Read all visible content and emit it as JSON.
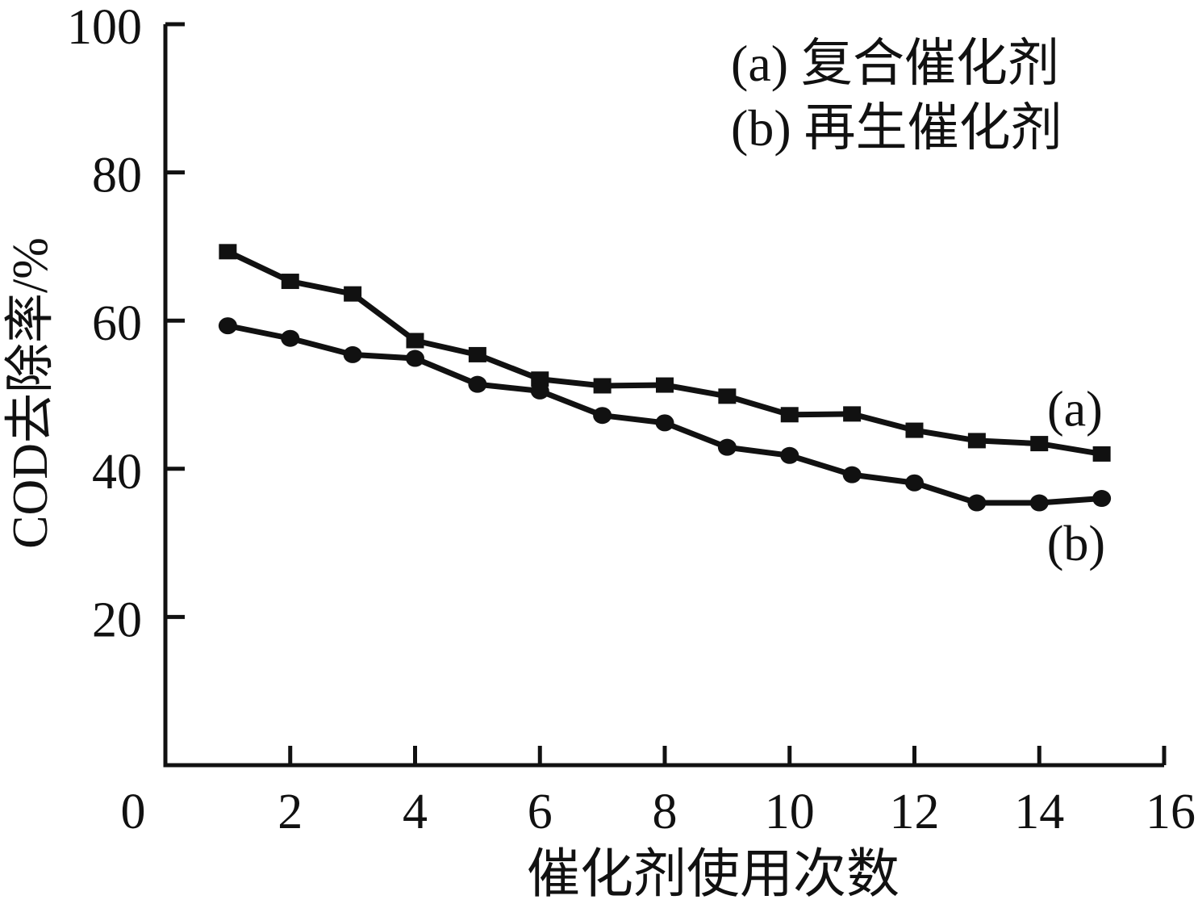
{
  "figure": {
    "background": "#ffffff",
    "ink_color": "#111111"
  },
  "chart_data": {
    "type": "line",
    "title": "",
    "xlabel": "催化剂使用次数",
    "ylabel": "COD去除率/%",
    "xlim": [
      0,
      16
    ],
    "ylim": [
      0,
      100
    ],
    "xticks": [
      0,
      2,
      4,
      6,
      8,
      10,
      12,
      14,
      16
    ],
    "yticks": [
      20,
      40,
      60,
      80,
      100
    ],
    "grid": false,
    "x": [
      1,
      2,
      3,
      4,
      5,
      6,
      7,
      8,
      9,
      10,
      11,
      12,
      13,
      14,
      15
    ],
    "series": [
      {
        "id": "a",
        "name": "复合催化剂",
        "legend_label": "(a) 复合催化剂",
        "marker": "square",
        "color": "#111111",
        "values": [
          69.3,
          65.3,
          63.6,
          57.3,
          55.4,
          52.1,
          51.2,
          51.3,
          49.8,
          47.3,
          47.4,
          45.2,
          43.8,
          43.4,
          42.0
        ]
      },
      {
        "id": "b",
        "name": "再生催化剂",
        "legend_label": "(b) 再生催化剂",
        "marker": "circle",
        "color": "#111111",
        "values": [
          59.3,
          57.6,
          55.4,
          54.9,
          51.4,
          50.5,
          47.2,
          46.2,
          42.9,
          41.8,
          39.2,
          38.1,
          35.4,
          35.4,
          36.0
        ]
      }
    ],
    "legend": {
      "position": "top-right",
      "lines": [
        "(a) 复合催化剂",
        "(b) 再生催化剂"
      ]
    },
    "annotations": [
      {
        "text": "(a)",
        "x": 14.57,
        "y": 48.3
      },
      {
        "text": "(b)",
        "x": 14.59,
        "y": 30.2
      }
    ]
  }
}
